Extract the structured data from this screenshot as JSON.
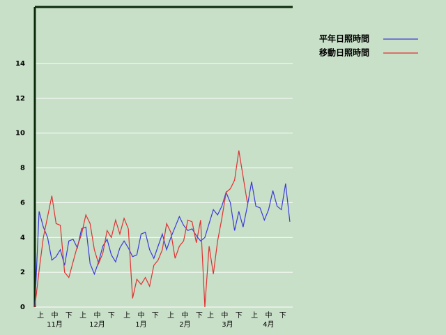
{
  "chart_data": {
    "type": "line",
    "x": [
      0,
      3,
      6,
      9,
      12,
      15,
      18,
      21,
      24,
      27,
      30,
      33,
      36,
      39,
      42,
      45,
      48,
      51,
      54,
      57,
      60,
      63,
      66,
      69,
      72,
      75,
      78,
      81,
      84,
      87,
      90,
      93,
      96,
      99,
      102,
      105,
      108,
      111,
      114,
      117,
      120,
      123,
      126,
      129,
      132,
      135,
      138,
      141,
      144,
      147,
      150,
      153,
      156,
      159,
      162,
      165,
      168,
      171,
      174,
      177,
      180
    ],
    "series": [
      {
        "name": "平年日照時間",
        "color": "#3a3ad8",
        "values": [
          0,
          5.5,
          4.6,
          4.0,
          2.7,
          2.9,
          3.3,
          2.4,
          3.8,
          3.9,
          3.4,
          4.5,
          4.6,
          2.5,
          1.9,
          2.6,
          3.5,
          3.9,
          3.0,
          2.6,
          3.4,
          3.8,
          3.4,
          2.9,
          3.0,
          4.2,
          4.3,
          3.3,
          2.8,
          3.5,
          4.2,
          3.3,
          4.0,
          4.6,
          5.2,
          4.7,
          4.4,
          4.5,
          4.1,
          3.8,
          4.0,
          4.8,
          5.6,
          5.3,
          5.8,
          6.6,
          6.0,
          4.4,
          5.5,
          4.6,
          5.8,
          7.2,
          5.8,
          5.7,
          5.0,
          5.6,
          6.7,
          5.8,
          5.6,
          7.1,
          4.9
        ]
      },
      {
        "name": "移動日照時間",
        "color": "#e03030",
        "values": [
          0,
          2.1,
          4.0,
          5.2,
          6.4,
          4.8,
          4.7,
          2.0,
          1.7,
          2.6,
          3.5,
          4.2,
          5.3,
          4.8,
          3.3,
          2.5,
          3.1,
          4.4,
          4.0,
          5.0,
          4.2,
          5.1,
          4.5,
          0.5,
          1.6,
          1.3,
          1.7,
          1.2,
          2.4,
          2.7,
          3.3,
          4.8,
          4.3,
          2.8,
          3.5,
          3.8,
          5.0,
          4.9,
          3.7,
          5.0,
          0,
          3.5,
          1.9,
          3.8,
          5.1,
          6.6,
          6.8,
          7.3,
          9.0,
          7.5,
          6.0,
          null,
          null,
          null,
          null,
          null,
          null,
          null,
          null,
          null,
          null
        ]
      }
    ],
    "xlim": [
      0,
      182
    ],
    "ylim": [
      0,
      17.25
    ],
    "yticks": [
      0,
      2,
      4,
      6,
      8,
      10,
      12,
      14
    ],
    "xticks": [
      {
        "value": 4,
        "label": "上"
      },
      {
        "value": 14,
        "label": "中"
      },
      {
        "value": 24,
        "label": "下"
      },
      {
        "value": 34,
        "label": "上"
      },
      {
        "value": 44,
        "label": "中"
      },
      {
        "value": 54,
        "label": "下"
      },
      {
        "value": 65,
        "label": "上"
      },
      {
        "value": 75,
        "label": "中"
      },
      {
        "value": 85,
        "label": "下"
      },
      {
        "value": 96,
        "label": "上"
      },
      {
        "value": 106,
        "label": "中"
      },
      {
        "value": 116,
        "label": "下"
      },
      {
        "value": 124,
        "label": "上"
      },
      {
        "value": 134,
        "label": "中"
      },
      {
        "value": 144,
        "label": "下"
      },
      {
        "value": 155,
        "label": "上"
      },
      {
        "value": 165,
        "label": "中"
      },
      {
        "value": 175,
        "label": "下"
      }
    ],
    "month_ticks": [
      {
        "value": 14,
        "label": "11月"
      },
      {
        "value": 44,
        "label": "12月"
      },
      {
        "value": 75,
        "label": "1月"
      },
      {
        "value": 106,
        "label": "2月"
      },
      {
        "value": 136,
        "label": "3月"
      },
      {
        "value": 165,
        "label": "4月"
      }
    ],
    "grid": true
  }
}
